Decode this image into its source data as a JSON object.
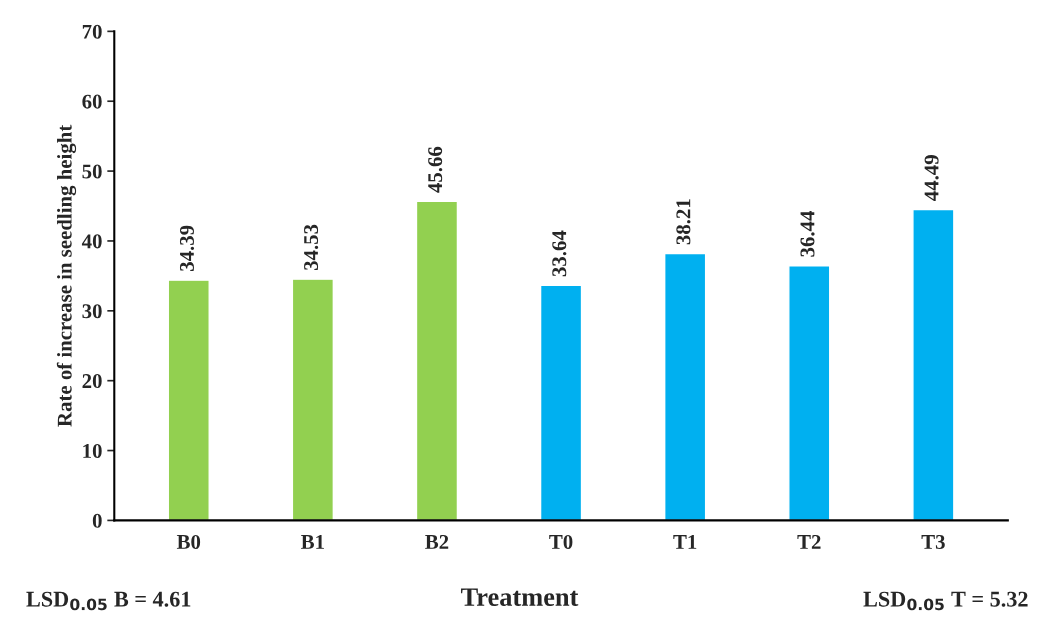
{
  "chart_data": {
    "type": "bar",
    "xlabel": "Treatment",
    "ylabel": "Rate of increase in seedling height",
    "categories": [
      "B0",
      "B1",
      "B2",
      "T0",
      "T1",
      "T2",
      "T3"
    ],
    "values": [
      34.39,
      34.53,
      45.66,
      33.64,
      38.21,
      36.44,
      44.49
    ],
    "colors": [
      "#92d050",
      "#92d050",
      "#92d050",
      "#00b0f0",
      "#00b0f0",
      "#00b0f0",
      "#00b0f0"
    ],
    "ylim": [
      0,
      70
    ],
    "yticks": [
      0,
      10,
      20,
      30,
      40,
      50,
      60,
      70
    ],
    "grid": false,
    "legend": false,
    "data_labels": true,
    "annotations": [
      "LSD$_{0.05}$ B = 4.61",
      "LSD$_{0.05}$ T = 5.32"
    ]
  }
}
